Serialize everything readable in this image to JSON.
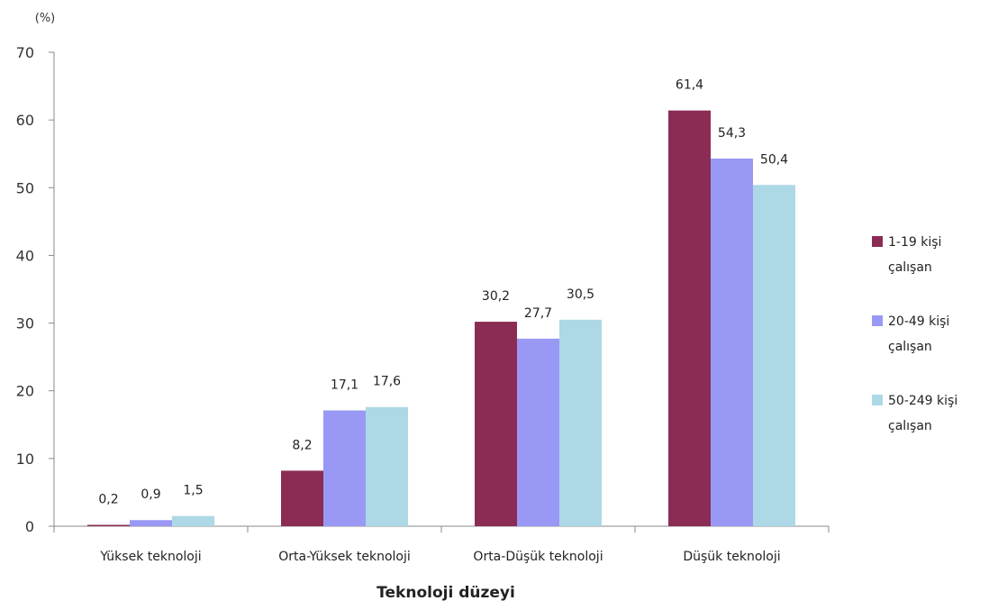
{
  "chart_data": {
    "type": "bar",
    "title": "",
    "unit_label": "(%)",
    "xlabel": "Teknoloji düzeyi",
    "ylabel": "",
    "ylim": [
      0,
      70
    ],
    "yticks": [
      "0",
      "10",
      "20",
      "30",
      "40",
      "50",
      "60",
      "70"
    ],
    "ytick_values": [
      0,
      10,
      20,
      30,
      40,
      50,
      60,
      70
    ],
    "grid": false,
    "legend_position": "right",
    "categories": [
      "Yüksek teknoloji",
      "Orta-Yüksek teknoloji",
      "Orta-Düşük teknoloji",
      "Düşük teknoloji"
    ],
    "series": [
      {
        "name": "1-19 kişi çalışan",
        "name_lines": [
          "1-19 kişi",
          "çalışan"
        ],
        "color": "#8B2C55",
        "values": [
          0.2,
          8.2,
          30.2,
          61.4
        ],
        "labels": [
          "0,2",
          "8,2",
          "30,2",
          "61,4"
        ]
      },
      {
        "name": "20-49 kişi çalışan",
        "name_lines": [
          "20-49 kişi",
          "çalışan"
        ],
        "color": "#9999F5",
        "values": [
          0.9,
          17.1,
          27.7,
          54.3
        ],
        "labels": [
          "0,9",
          "17,1",
          "27,7",
          "54,3"
        ]
      },
      {
        "name": "50-249 kişi çalışan",
        "name_lines": [
          "50-249 kişi",
          "çalışan"
        ],
        "color": "#ADD8E6",
        "values": [
          1.5,
          17.6,
          30.5,
          50.4
        ],
        "labels": [
          "1,5",
          "17,6",
          "30,5",
          "50,4"
        ]
      }
    ]
  }
}
